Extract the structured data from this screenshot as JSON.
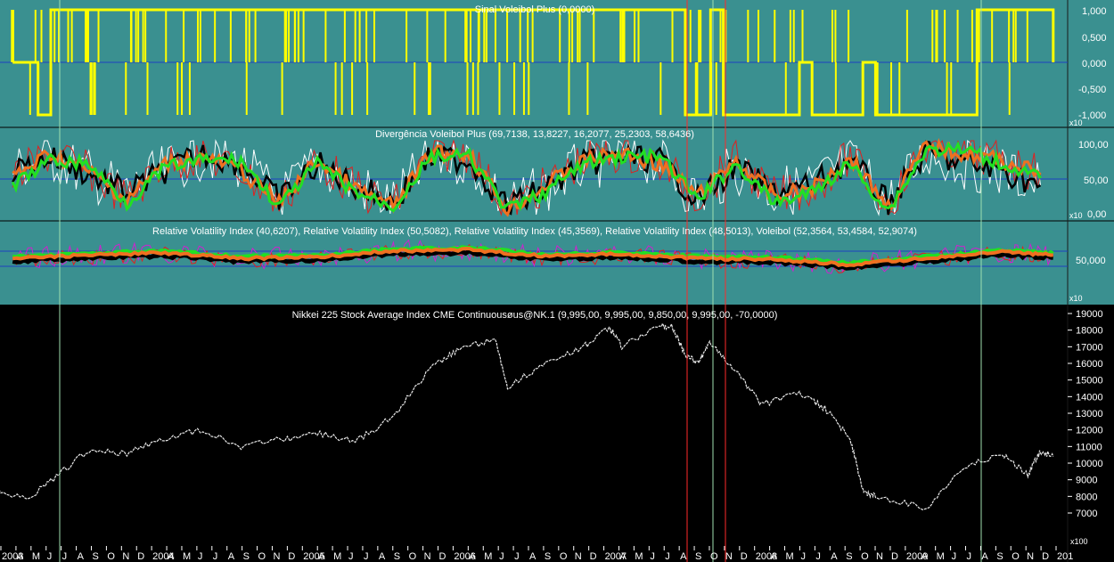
{
  "colors": {
    "panel_bg": "#3a9090",
    "price_bg": "#000000",
    "signal": "#ffff00",
    "zero_line": "#1f3fc0",
    "black_series": "#000000",
    "red_series": "#e02020",
    "green_series": "#22e022",
    "orange_series": "#f07020",
    "white_series": "#ffffff",
    "magenta_series": "#d020d0",
    "vertical_marker_green": "#9fe0b0",
    "vertical_marker_red": "#ff2a2a",
    "price_series": "#e8e8e8"
  },
  "panels": {
    "signal": {
      "title": "Sinal Voleibol Plus (0,0000)",
      "ticks": [
        "1,000",
        "0,500",
        "0,000",
        "-0,500",
        "-1,000"
      ]
    },
    "divergence": {
      "title": "Divergência Voleibol Plus (69,7138, 13,8227, 16,2077, 25,2303, 58,6436)",
      "scale_tag": "x10",
      "ticks": [
        "100,00",
        "50,00",
        "0,00"
      ]
    },
    "rvi": {
      "title": "Relative Volatility Index (40,6207), Relative Volatility Index (50,5082), Relative Volatility Index (45,3569), Relative Volatility Index (48,5013), Voleibol (52,3564, 53,4584, 52,9074)",
      "scale_tag": "x10",
      "ticks": [
        "50,000"
      ],
      "bottom_tag": "x10"
    },
    "price": {
      "title": "Nikkei 225 Stock Average Index CME Continuousøus@NK.1 (9,995,00, 9,995,00, 9,850,00, 9,995,00, -70,0000)",
      "ticks": [
        "19000",
        "18000",
        "17000",
        "16000",
        "15000",
        "14000",
        "13000",
        "12000",
        "11000",
        "10000",
        "9000",
        "8000",
        "7000"
      ],
      "bottom_tag": "x100"
    }
  },
  "time_axis": [
    "2003",
    "A",
    "M",
    "J",
    "J",
    "A",
    "S",
    "O",
    "N",
    "D",
    "2004",
    "A",
    "M",
    "J",
    "J",
    "A",
    "S",
    "O",
    "N",
    "D",
    "2005",
    "A",
    "M",
    "J",
    "J",
    "A",
    "S",
    "O",
    "N",
    "D",
    "2006",
    "A",
    "M",
    "J",
    "J",
    "A",
    "S",
    "O",
    "N",
    "D",
    "2007",
    "A",
    "M",
    "J",
    "J",
    "A",
    "S",
    "O",
    "N",
    "D",
    "2008",
    "A",
    "M",
    "J",
    "J",
    "A",
    "S",
    "O",
    "N",
    "D",
    "2009",
    "A",
    "M",
    "J",
    "J",
    "A",
    "S",
    "O",
    "N",
    "D",
    "201"
  ],
  "chart_data": [
    {
      "type": "line",
      "title": "Sinal Voleibol Plus (0,0000)",
      "ylim": [
        -1,
        1
      ],
      "x": [
        "2003-03",
        "2003-05",
        "2003-06",
        "2004-06",
        "2004-07",
        "2005-09",
        "2005-10",
        "2006-12",
        "2007-01",
        "2007-07",
        "2007-08",
        "2007-10",
        "2007-11",
        "2008-05",
        "2008-06",
        "2008-10",
        "2008-11",
        "2009-06",
        "2009-07",
        "2009-12",
        "2010-01"
      ],
      "series": [
        {
          "values": [
            0,
            -1,
            1,
            1,
            1,
            1,
            1,
            1,
            1,
            1,
            -1,
            1,
            -1,
            0,
            -1,
            0,
            -1,
            -1,
            1,
            1,
            0
          ]
        }
      ]
    },
    {
      "type": "line",
      "title": "Divergência Voleibol Plus (69,7138, 13,8227, 16,2077, 25,2303, 58,6436)",
      "ylim": [
        0,
        100
      ],
      "x": [
        "2003-03",
        "2003-06",
        "2003-09",
        "2003-12",
        "2004-03",
        "2004-06",
        "2004-09",
        "2004-12",
        "2005-03",
        "2005-06",
        "2005-09",
        "2005-12",
        "2006-03",
        "2006-06",
        "2006-09",
        "2006-12",
        "2007-03",
        "2007-06",
        "2007-09",
        "2007-12",
        "2008-03",
        "2008-06",
        "2008-09",
        "2008-12",
        "2009-03",
        "2009-06",
        "2009-09",
        "2009-12"
      ],
      "series": [
        {
          "name": "",
          "values": [
            60,
            80,
            55,
            30,
            60,
            85,
            70,
            20,
            70,
            40,
            15,
            80,
            75,
            10,
            35,
            70,
            80,
            75,
            20,
            65,
            30,
            40,
            75,
            15,
            85,
            70,
            60,
            40
          ]
        },
        {
          "name": "",
          "values": [
            50,
            85,
            60,
            20,
            70,
            80,
            60,
            15,
            75,
            35,
            10,
            85,
            85,
            5,
            40,
            75,
            85,
            70,
            25,
            75,
            25,
            35,
            80,
            10,
            95,
            85,
            75,
            55
          ]
        },
        {
          "name": "",
          "values": [
            40,
            75,
            70,
            15,
            65,
            75,
            75,
            10,
            70,
            30,
            10,
            80,
            80,
            5,
            30,
            70,
            80,
            80,
            20,
            70,
            15,
            30,
            70,
            5,
            90,
            90,
            70,
            50
          ]
        }
      ]
    },
    {
      "type": "line",
      "title": "Relative Volatility Index (40,6207), Relative Volatility Index (50,5082), Relative Volatility Index (45,3569), Relative Volatility Index (48,5013), Voleibol (52,3564, 53,4584, 52,9074)",
      "ylim": [
        20,
        80
      ],
      "x": [
        "2003-03",
        "2003-09",
        "2004-03",
        "2004-09",
        "2005-03",
        "2005-09",
        "2006-03",
        "2006-09",
        "2007-03",
        "2007-09",
        "2008-03",
        "2008-09",
        "2009-03",
        "2009-09",
        "2010-01"
      ],
      "series": [
        {
          "name": "",
          "values": [
            50,
            53,
            55,
            50,
            51,
            57,
            58,
            52,
            54,
            50,
            49,
            44,
            50,
            56,
            53
          ]
        }
      ]
    },
    {
      "type": "line",
      "title": "Nikkei 225 Stock Average Index CME Continuousøus@NK.1 (9,995,00, 9,995,00, 9,850,00, 9,995,00, -70,0000)",
      "ylim": [
        6500,
        19200
      ],
      "x": [
        "2003-01",
        "2003-04",
        "2003-06",
        "2003-09",
        "2003-12",
        "2004-03",
        "2004-06",
        "2004-09",
        "2004-12",
        "2005-03",
        "2005-06",
        "2005-09",
        "2005-12",
        "2006-02",
        "2006-05",
        "2006-06",
        "2006-09",
        "2006-12",
        "2007-02",
        "2007-03",
        "2007-06",
        "2007-07",
        "2007-08",
        "2007-09",
        "2007-10",
        "2007-12",
        "2008-02",
        "2008-05",
        "2008-07",
        "2008-09",
        "2008-10",
        "2008-11",
        "2009-03",
        "2009-06",
        "2009-09",
        "2009-11",
        "2009-12",
        "2010-01"
      ],
      "series": [
        {
          "name": "",
          "values": [
            8600,
            7800,
            8900,
            10800,
            10600,
            11500,
            12000,
            11000,
            11400,
            11800,
            11300,
            12800,
            15800,
            16800,
            17500,
            14600,
            16000,
            17000,
            18200,
            17000,
            18300,
            18200,
            16500,
            16000,
            17300,
            15500,
            13500,
            14200,
            13300,
            11500,
            8300,
            8000,
            7300,
            9800,
            10500,
            9300,
            10700,
            10400
          ]
        }
      ]
    }
  ]
}
